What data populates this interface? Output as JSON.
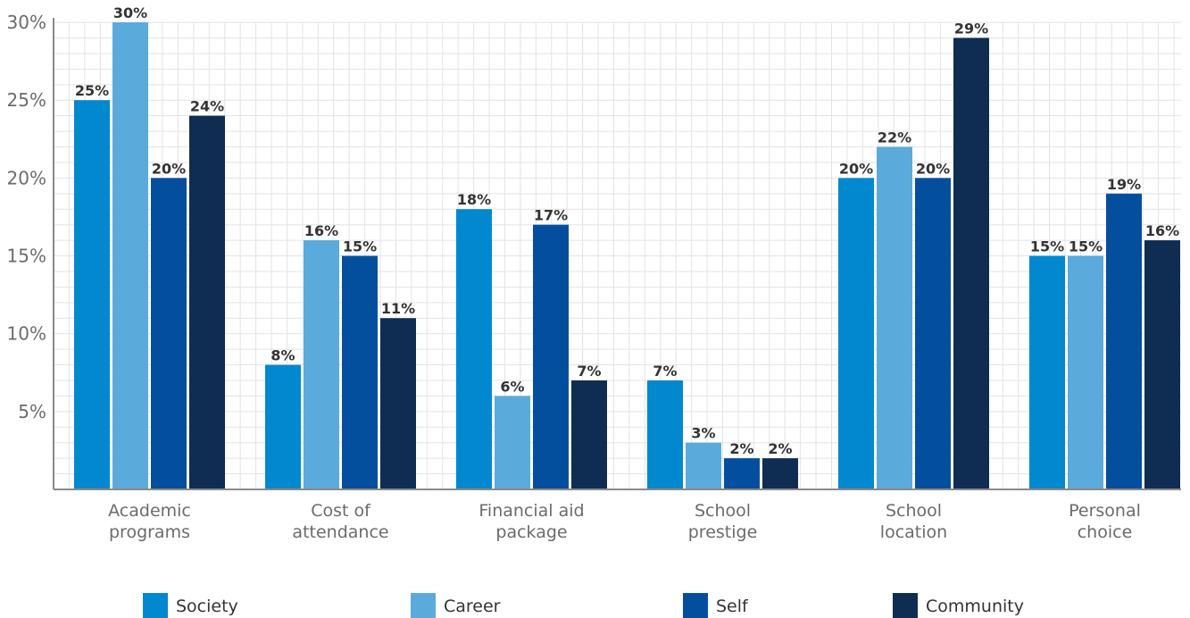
{
  "chart_data": {
    "type": "bar",
    "categories": [
      [
        "Academic",
        "programs"
      ],
      [
        "Cost of",
        "attendance"
      ],
      [
        "Financial aid",
        "package"
      ],
      [
        "School",
        "prestige"
      ],
      [
        "School",
        "location"
      ],
      [
        "Personal",
        "choice"
      ]
    ],
    "series": [
      {
        "name": "Society",
        "color": "#0288cf",
        "values": [
          25,
          8,
          18,
          7,
          20,
          15
        ]
      },
      {
        "name": "Career",
        "color": "#5aabdc",
        "values": [
          30,
          16,
          6,
          3,
          22,
          15
        ]
      },
      {
        "name": "Self",
        "color": "#034f9e",
        "values": [
          20,
          15,
          17,
          2,
          20,
          19
        ]
      },
      {
        "name": "Community",
        "color": "#0f2d52",
        "values": [
          24,
          11,
          7,
          2,
          29,
          16
        ]
      }
    ],
    "y_ticks": [
      5,
      10,
      15,
      20,
      25,
      30
    ],
    "y_tick_format": "%",
    "ylim": [
      0,
      30
    ],
    "grid": true,
    "legend_position": "bottom"
  }
}
